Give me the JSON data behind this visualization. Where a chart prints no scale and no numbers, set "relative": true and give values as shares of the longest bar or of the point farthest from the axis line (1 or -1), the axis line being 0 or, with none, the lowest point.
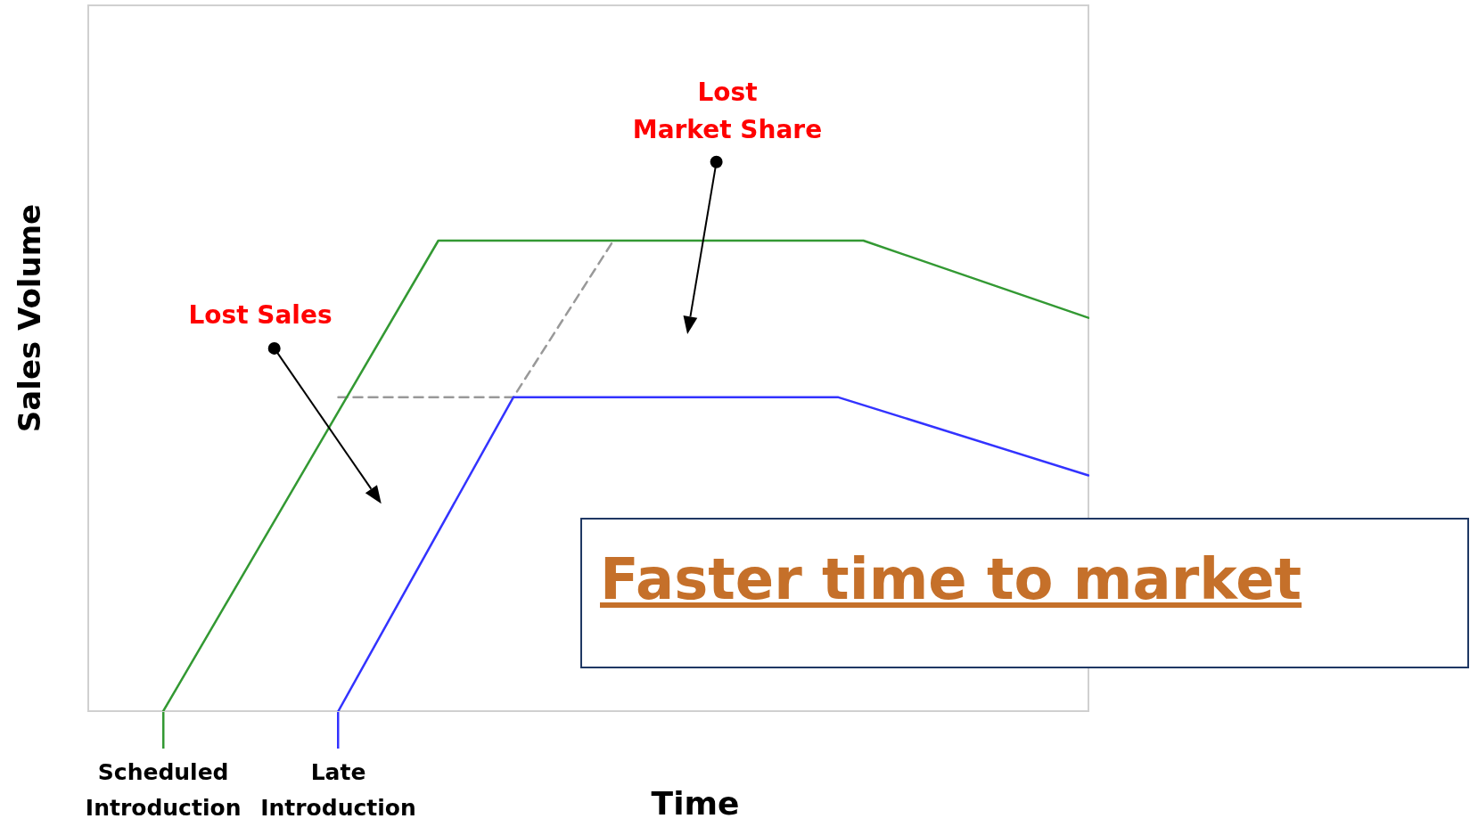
{
  "chart_data": {
    "type": "line",
    "title": "Faster time to market",
    "xlabel": "Time",
    "ylabel": "Sales Volume",
    "relative": true,
    "legend": false,
    "grid": false,
    "marker": "none",
    "categories": [
      null,
      null,
      null,
      "Scheduled Introduction",
      null,
      null,
      null,
      null,
      null,
      null,
      "Late Introduction",
      null,
      null,
      null,
      null,
      null,
      null,
      null,
      null,
      null,
      null,
      null,
      null,
      null,
      null,
      null,
      null,
      null,
      null,
      null,
      null,
      null,
      null,
      null,
      null,
      null,
      null,
      null,
      null,
      null,
      null
    ],
    "series": [
      {
        "color": "#339933",
        "values": [
          null,
          null,
          null,
          0,
          null,
          null,
          null,
          null,
          null,
          null,
          null,
          null,
          null,
          null,
          1,
          null,
          null,
          null,
          null,
          null,
          null,
          null,
          null,
          null,
          null,
          null,
          null,
          null,
          null,
          null,
          null,
          1,
          null,
          null,
          null,
          null,
          null,
          null,
          null,
          null,
          0.836
        ]
      },
      {
        "color": "#3333ff",
        "values": [
          null,
          null,
          null,
          null,
          null,
          null,
          null,
          null,
          null,
          null,
          0,
          null,
          null,
          null,
          null,
          null,
          null,
          0.667,
          null,
          null,
          null,
          null,
          null,
          null,
          null,
          null,
          null,
          null,
          null,
          null,
          0.667,
          null,
          null,
          null,
          null,
          null,
          null,
          null,
          null,
          null,
          0.501
        ]
      },
      {
        "color": "#999999",
        "line_style": "dashed",
        "values": [
          null,
          null,
          null,
          null,
          null,
          null,
          null,
          null,
          null,
          null,
          0.667,
          null,
          null,
          null,
          null,
          null,
          null,
          0.667,
          null,
          null,
          null,
          1,
          null,
          null,
          null,
          null,
          null,
          null,
          null,
          null,
          null,
          null,
          null,
          null,
          null,
          null,
          null,
          null,
          null,
          null,
          null
        ]
      }
    ],
    "annotations": [
      "Lost Sales",
      "Lost\nMarket Share"
    ]
  }
}
